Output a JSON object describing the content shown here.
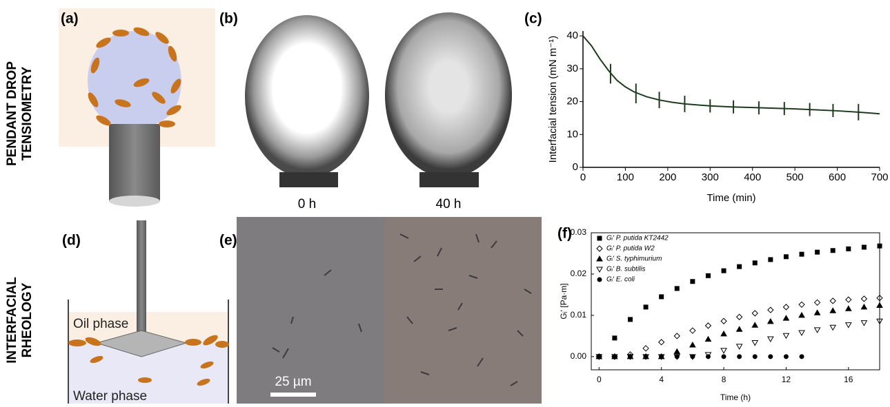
{
  "panel_labels": [
    "(a)",
    "(b)",
    "(c)",
    "(d)",
    "(e)",
    "(f)"
  ],
  "row_labels": [
    [
      "PENDANT DROP",
      "TENSIOMETRY"
    ],
    [
      "INTERFACIAL",
      "RHEOLOGY"
    ]
  ],
  "captions": {
    "drop_0h": "0 h",
    "drop_40h": "40 h",
    "oil": "Oil phase",
    "water": "Water phase",
    "scale_bar": "25 µm"
  },
  "chart_data": [
    {
      "type": "line",
      "xlabel": "Time (min)",
      "ylabel": "Interfacial tension (mN m⁻¹)",
      "xlim": [
        0,
        700
      ],
      "ylim": [
        0,
        41.5
      ],
      "xticks": [
        0,
        100,
        200,
        300,
        400,
        500,
        600,
        700
      ],
      "yticks": [
        0,
        10,
        20,
        30,
        40
      ],
      "color": "#1e3a1e",
      "x": [
        0,
        20,
        40,
        60,
        80,
        100,
        120,
        150,
        180,
        210,
        240,
        270,
        300,
        350,
        400,
        450,
        500,
        550,
        600,
        650,
        700
      ],
      "values": [
        40,
        37,
        33,
        29.5,
        26.5,
        24.5,
        23,
        21.5,
        20.5,
        19.8,
        19.3,
        19,
        18.7,
        18.4,
        18.2,
        18,
        17.8,
        17.5,
        17.2,
        16.8,
        16.3
      ],
      "error_bars": {
        "x": [
          65,
          125,
          180,
          240,
          300,
          355,
          415,
          475,
          535,
          590,
          650
        ],
        "values": [
          28.5,
          22.5,
          20.5,
          19.3,
          18.7,
          18.4,
          18.1,
          17.9,
          17.6,
          17.3,
          16.8
        ],
        "errors": [
          3,
          3,
          2.5,
          2.5,
          2,
          2,
          2,
          2,
          2,
          2,
          2.5
        ]
      }
    },
    {
      "type": "scatter",
      "xlabel": "Time (h)",
      "ylabel": "Gᵢ' [Pa·m]",
      "xlim": [
        -0.5,
        18
      ],
      "ylim": [
        -0.0032,
        0.03
      ],
      "xticks": [
        0,
        4,
        8,
        12,
        16
      ],
      "yticks": [
        {
          "value": 0,
          "label": "0.00"
        },
        {
          "value": 0.01,
          "label": "0.01"
        },
        {
          "value": 0.02,
          "label": "0.02"
        },
        {
          "value": 0.03,
          "label": "0.03"
        }
      ],
      "x": [
        0,
        1,
        2,
        3,
        4,
        5,
        6,
        7,
        8,
        9,
        10,
        11,
        12,
        13,
        14,
        15,
        16,
        17,
        18
      ],
      "series": [
        {
          "name": "Gᵢ' P. putida KT2442",
          "color": "#000",
          "marker": "square",
          "filled": true,
          "values": [
            0,
            0.0045,
            0.009,
            0.012,
            0.0145,
            0.0165,
            0.0182,
            0.0196,
            0.0208,
            0.0218,
            0.0227,
            0.0235,
            0.0242,
            0.0248,
            0.0253,
            0.0257,
            0.0261,
            0.0265,
            0.0268
          ]
        },
        {
          "name": "Gᵢ' P. putida W2",
          "color": "#000",
          "marker": "diamond",
          "filled": false,
          "values": [
            0,
            0,
            0.0005,
            0.002,
            0.0035,
            0.005,
            0.0063,
            0.0075,
            0.0086,
            0.0096,
            0.0105,
            0.0113,
            0.012,
            0.0126,
            0.0131,
            0.0135,
            0.0138,
            0.014,
            0.0142
          ]
        },
        {
          "name": "Gᵢ' S. typhimurium",
          "color": "#000",
          "marker": "triangle",
          "filled": true,
          "values": [
            0,
            0,
            0,
            0,
            0,
            0.0012,
            0.0028,
            0.0042,
            0.0055,
            0.0066,
            0.0076,
            0.0085,
            0.0093,
            0.01,
            0.0106,
            0.0111,
            0.0116,
            0.012,
            0.0124
          ]
        },
        {
          "name": "Gᵢ' B. subtilis",
          "color": "#000",
          "marker": "triangle-down",
          "filled": false,
          "values": [
            0,
            0,
            0,
            0,
            0,
            0,
            0,
            0.0005,
            0.0015,
            0.0025,
            0.0034,
            0.0043,
            0.0051,
            0.0058,
            0.0065,
            0.0071,
            0.0077,
            0.0082,
            0.0086
          ]
        },
        {
          "name": "Gᵢ' E. coli",
          "color": "#000",
          "marker": "circle",
          "filled": true,
          "values": [
            0,
            0,
            0,
            0,
            0,
            0,
            0,
            0,
            0,
            0,
            0,
            0,
            0,
            0,
            null,
            null,
            null,
            null,
            null
          ]
        }
      ]
    }
  ]
}
